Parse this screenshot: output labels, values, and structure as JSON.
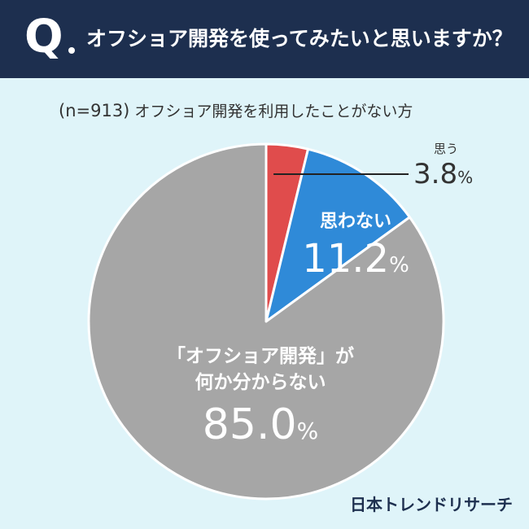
{
  "header": {
    "q_letter": "Q",
    "question": "オフショア開発を使ってみたいと思いますか？"
  },
  "subtitle": {
    "n": "(n=913)",
    "text": "オフショア開発を利用したことがない方"
  },
  "chart_data": {
    "type": "pie",
    "slices": [
      {
        "label": "思う",
        "value": 3.8,
        "display": "3.8",
        "color": "#e04c4c"
      },
      {
        "label": "思わない",
        "value": 11.2,
        "display": "11.2",
        "color": "#2f8ad8"
      },
      {
        "label_line1": "「オフショア開発」が",
        "label_line2": "何か分からない",
        "value": 85.0,
        "display": "85.0",
        "color": "#a6a6a6"
      }
    ],
    "unit": "%"
  },
  "brand": "日本トレンドリサーチ"
}
